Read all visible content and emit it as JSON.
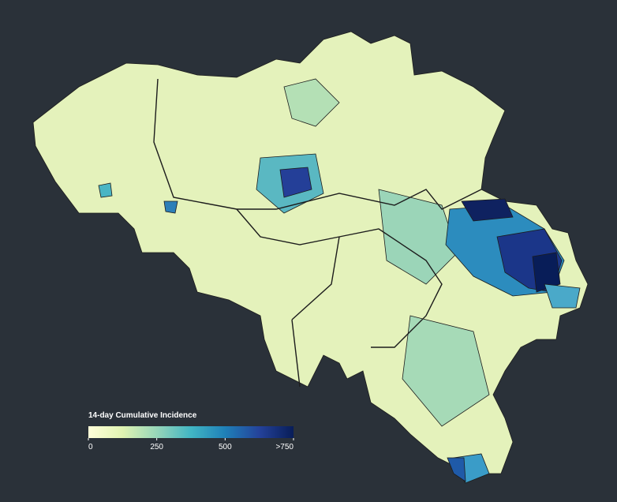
{
  "legend": {
    "title": "14-day Cumulative Incidence",
    "range": [
      0,
      750
    ],
    "colors": [
      "#ffffd9",
      "#e0f3b2",
      "#97d6b9",
      "#41b6c4",
      "#1f80b8",
      "#24429a",
      "#081d58"
    ],
    "ticks": [
      0,
      250,
      500,
      {
        "value": 750,
        "label": ">750"
      }
    ]
  }
}
